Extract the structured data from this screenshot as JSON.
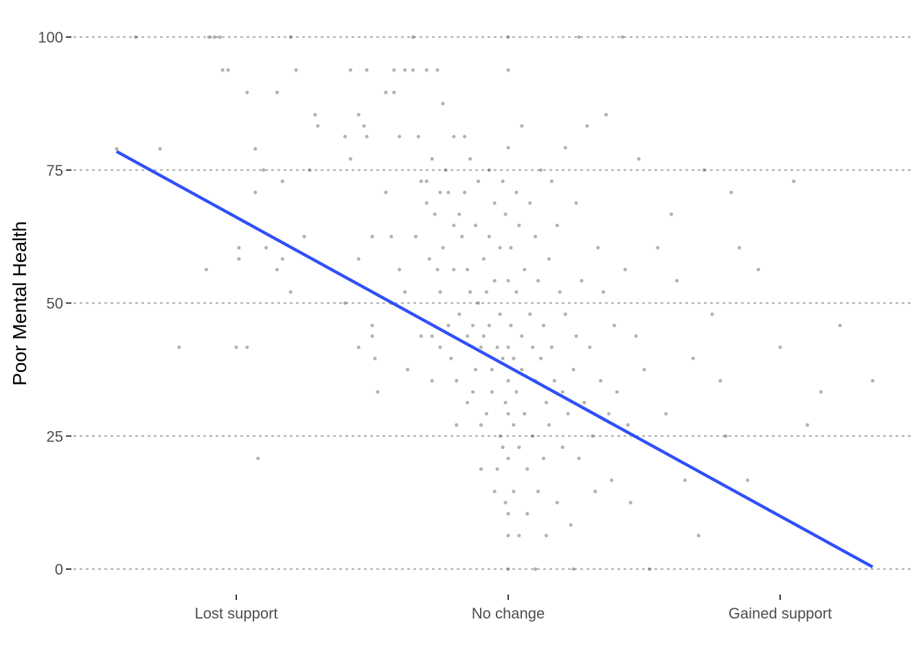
{
  "chart_data": {
    "type": "scatter",
    "title": "",
    "xlabel": "",
    "ylabel": "Poor Mental Health",
    "x_tick_labels": [
      "Lost support",
      "No change",
      "Gained support"
    ],
    "x_tick_values": [
      -1,
      0,
      1
    ],
    "xlim": [
      -1.6,
      1.5
    ],
    "y_ticks": [
      0,
      25,
      50,
      75,
      100
    ],
    "ylim": [
      -5,
      106
    ],
    "grid": "horizontal dotted at y ticks",
    "point_color": "#000000",
    "point_alpha": 0.3,
    "trend_line": {
      "color": "#3050f8",
      "points": [
        [
          -1.44,
          78.5
        ],
        [
          1.34,
          0.4
        ]
      ]
    },
    "points": [
      [
        -1.44,
        79
      ],
      [
        -1.37,
        100
      ],
      [
        -1.28,
        79
      ],
      [
        -1.21,
        41.7
      ],
      [
        -1.11,
        56.3
      ],
      [
        -1.1,
        100
      ],
      [
        -1.08,
        100
      ],
      [
        -1.06,
        100
      ],
      [
        -1.05,
        93.8
      ],
      [
        -1.03,
        93.8
      ],
      [
        -1.0,
        41.7
      ],
      [
        -0.99,
        60.4
      ],
      [
        -0.99,
        58.3
      ],
      [
        -0.96,
        41.7
      ],
      [
        -0.96,
        89.6
      ],
      [
        -0.93,
        79
      ],
      [
        -0.93,
        70.8
      ],
      [
        -0.92,
        20.8
      ],
      [
        -0.9,
        75
      ],
      [
        -0.89,
        60.4
      ],
      [
        -0.85,
        89.6
      ],
      [
        -0.85,
        56.3
      ],
      [
        -0.83,
        72.9
      ],
      [
        -0.83,
        58.3
      ],
      [
        -0.8,
        52.1
      ],
      [
        -0.8,
        100
      ],
      [
        -0.78,
        93.8
      ],
      [
        -0.75,
        62.5
      ],
      [
        -0.73,
        75
      ],
      [
        -0.71,
        85.4
      ],
      [
        -0.7,
        83.3
      ],
      [
        -0.65,
        56.3
      ],
      [
        -0.6,
        81.3
      ],
      [
        -0.6,
        50
      ],
      [
        -0.58,
        93.8
      ],
      [
        -0.58,
        77.1
      ],
      [
        -0.55,
        85.4
      ],
      [
        -0.55,
        58.3
      ],
      [
        -0.55,
        41.7
      ],
      [
        -0.53,
        83.3
      ],
      [
        -0.52,
        93.8
      ],
      [
        -0.52,
        81.3
      ],
      [
        -0.5,
        62.5
      ],
      [
        -0.5,
        45.8
      ],
      [
        -0.5,
        43.8
      ],
      [
        -0.49,
        39.6
      ],
      [
        -0.48,
        33.3
      ],
      [
        -0.45,
        89.6
      ],
      [
        -0.45,
        70.8
      ],
      [
        -0.43,
        62.5
      ],
      [
        -0.43,
        50
      ],
      [
        -0.42,
        93.8
      ],
      [
        -0.42,
        89.6
      ],
      [
        -0.4,
        81.3
      ],
      [
        -0.4,
        56.3
      ],
      [
        -0.38,
        52.1
      ],
      [
        -0.38,
        93.8
      ],
      [
        -0.37,
        37.5
      ],
      [
        -0.35,
        100
      ],
      [
        -0.35,
        93.8
      ],
      [
        -0.34,
        62.5
      ],
      [
        -0.33,
        81.3
      ],
      [
        -0.32,
        72.9
      ],
      [
        -0.32,
        43.8
      ],
      [
        -0.3,
        93.8
      ],
      [
        -0.3,
        72.9
      ],
      [
        -0.3,
        68.8
      ],
      [
        -0.29,
        58.3
      ],
      [
        -0.28,
        77.1
      ],
      [
        -0.28,
        43.8
      ],
      [
        -0.28,
        35.4
      ],
      [
        -0.27,
        66.7
      ],
      [
        -0.26,
        93.8
      ],
      [
        -0.26,
        56.3
      ],
      [
        -0.25,
        70.8
      ],
      [
        -0.25,
        52.1
      ],
      [
        -0.25,
        41.7
      ],
      [
        -0.24,
        87.5
      ],
      [
        -0.24,
        60.4
      ],
      [
        -0.23,
        75
      ],
      [
        -0.22,
        70.8
      ],
      [
        -0.22,
        45.8
      ],
      [
        -0.21,
        39.6
      ],
      [
        -0.2,
        81.3
      ],
      [
        -0.2,
        64.6
      ],
      [
        -0.2,
        56.3
      ],
      [
        -0.19,
        35.4
      ],
      [
        -0.19,
        27.1
      ],
      [
        -0.18,
        66.7
      ],
      [
        -0.18,
        47.9
      ],
      [
        -0.17,
        62.5
      ],
      [
        -0.16,
        81.3
      ],
      [
        -0.16,
        70.8
      ],
      [
        -0.15,
        56.3
      ],
      [
        -0.15,
        43.8
      ],
      [
        -0.15,
        31.3
      ],
      [
        -0.14,
        77.1
      ],
      [
        -0.14,
        52.1
      ],
      [
        -0.13,
        45.8
      ],
      [
        -0.13,
        33.3
      ],
      [
        -0.12,
        64.6
      ],
      [
        -0.12,
        37.5
      ],
      [
        -0.11,
        72.9
      ],
      [
        -0.11,
        50
      ],
      [
        -0.1,
        41.7
      ],
      [
        -0.1,
        27.1
      ],
      [
        -0.1,
        18.8
      ],
      [
        -0.09,
        58.3
      ],
      [
        -0.09,
        43.8
      ],
      [
        -0.08,
        52.1
      ],
      [
        -0.08,
        29.2
      ],
      [
        -0.07,
        62.5
      ],
      [
        -0.07,
        75
      ],
      [
        -0.07,
        45.8
      ],
      [
        -0.06,
        37.5
      ],
      [
        -0.06,
        33.3
      ],
      [
        -0.05,
        68.8
      ],
      [
        -0.05,
        54.2
      ],
      [
        -0.05,
        14.6
      ],
      [
        -0.04,
        41.7
      ],
      [
        -0.04,
        18.8
      ],
      [
        -0.03,
        60.4
      ],
      [
        -0.03,
        47.9
      ],
      [
        -0.03,
        25
      ],
      [
        -0.02,
        72.9
      ],
      [
        -0.02,
        39.6
      ],
      [
        -0.02,
        22.9
      ],
      [
        -0.01,
        66.7
      ],
      [
        -0.01,
        31.3
      ],
      [
        -0.01,
        12.5
      ],
      [
        0.0,
        79.2
      ],
      [
        0.0,
        54.2
      ],
      [
        0.0,
        41.7
      ],
      [
        0.0,
        35.4
      ],
      [
        0.0,
        29.2
      ],
      [
        0.0,
        20.8
      ],
      [
        0.0,
        10.4
      ],
      [
        0.0,
        6.3
      ],
      [
        0.0,
        0
      ],
      [
        0.0,
        93.8
      ],
      [
        0.0,
        100
      ],
      [
        0.01,
        45.8
      ],
      [
        0.01,
        60.4
      ],
      [
        0.02,
        39.6
      ],
      [
        0.02,
        27.1
      ],
      [
        0.02,
        14.6
      ],
      [
        0.03,
        70.8
      ],
      [
        0.03,
        52.1
      ],
      [
        0.03,
        33.3
      ],
      [
        0.04,
        64.6
      ],
      [
        0.04,
        22.9
      ],
      [
        0.04,
        6.3
      ],
      [
        0.05,
        83.3
      ],
      [
        0.05,
        43.8
      ],
      [
        0.05,
        37.5
      ],
      [
        0.06,
        56.3
      ],
      [
        0.06,
        29.2
      ],
      [
        0.07,
        18.8
      ],
      [
        0.07,
        10.4
      ],
      [
        0.08,
        68.8
      ],
      [
        0.08,
        47.9
      ],
      [
        0.09,
        41.7
      ],
      [
        0.09,
        25
      ],
      [
        0.1,
        62.5
      ],
      [
        0.1,
        35.4
      ],
      [
        0.1,
        0
      ],
      [
        0.11,
        54.2
      ],
      [
        0.11,
        14.6
      ],
      [
        0.12,
        75
      ],
      [
        0.12,
        39.6
      ],
      [
        0.13,
        45.8
      ],
      [
        0.13,
        20.8
      ],
      [
        0.14,
        31.3
      ],
      [
        0.14,
        6.3
      ],
      [
        0.15,
        58.3
      ],
      [
        0.15,
        27.1
      ],
      [
        0.16,
        72.9
      ],
      [
        0.16,
        41.7
      ],
      [
        0.17,
        35.4
      ],
      [
        0.18,
        12.5
      ],
      [
        0.18,
        64.6
      ],
      [
        0.19,
        52.1
      ],
      [
        0.2,
        33.3
      ],
      [
        0.2,
        22.9
      ],
      [
        0.21,
        79.2
      ],
      [
        0.21,
        47.9
      ],
      [
        0.22,
        29.2
      ],
      [
        0.23,
        8.3
      ],
      [
        0.24,
        37.5
      ],
      [
        0.24,
        0
      ],
      [
        0.25,
        68.8
      ],
      [
        0.25,
        43.8
      ],
      [
        0.26,
        100
      ],
      [
        0.26,
        20.8
      ],
      [
        0.27,
        54.2
      ],
      [
        0.28,
        31.3
      ],
      [
        0.29,
        83.3
      ],
      [
        0.3,
        41.7
      ],
      [
        0.31,
        25
      ],
      [
        0.32,
        14.6
      ],
      [
        0.33,
        60.4
      ],
      [
        0.34,
        35.4
      ],
      [
        0.35,
        52.1
      ],
      [
        0.36,
        85.4
      ],
      [
        0.37,
        29.2
      ],
      [
        0.38,
        16.7
      ],
      [
        0.39,
        45.8
      ],
      [
        0.4,
        33.3
      ],
      [
        0.42,
        100
      ],
      [
        0.43,
        56.3
      ],
      [
        0.44,
        27.1
      ],
      [
        0.45,
        12.5
      ],
      [
        0.47,
        43.8
      ],
      [
        0.48,
        77.1
      ],
      [
        0.5,
        37.5
      ],
      [
        0.52,
        0
      ],
      [
        0.55,
        60.4
      ],
      [
        0.58,
        29.2
      ],
      [
        0.6,
        66.7
      ],
      [
        0.62,
        54.2
      ],
      [
        0.65,
        16.7
      ],
      [
        0.68,
        39.6
      ],
      [
        0.7,
        6.3
      ],
      [
        0.72,
        75
      ],
      [
        0.75,
        47.9
      ],
      [
        0.78,
        35.4
      ],
      [
        0.8,
        25
      ],
      [
        0.82,
        70.8
      ],
      [
        0.85,
        60.4
      ],
      [
        0.88,
        16.7
      ],
      [
        0.92,
        56.3
      ],
      [
        1.0,
        41.7
      ],
      [
        1.05,
        72.9
      ],
      [
        1.1,
        27.1
      ],
      [
        1.15,
        33.3
      ],
      [
        1.22,
        45.8
      ],
      [
        1.34,
        35.4
      ]
    ]
  }
}
